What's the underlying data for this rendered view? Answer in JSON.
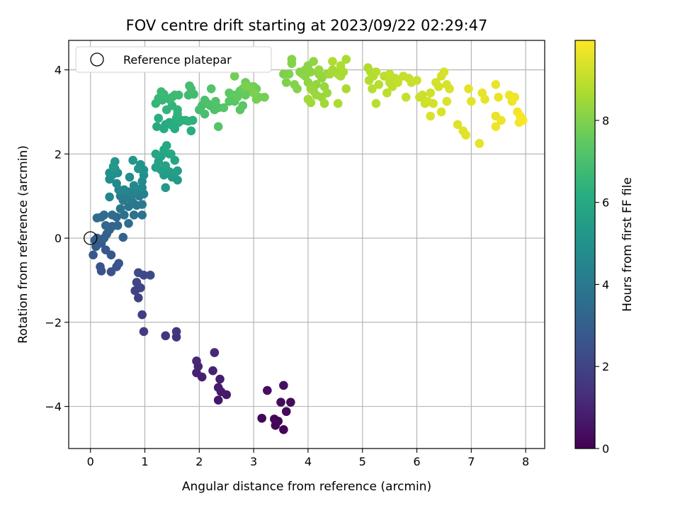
{
  "chart_data": {
    "type": "scatter",
    "title": "FOV centre drift starting at 2023/09/22 02:29:47",
    "xlabel": "Angular distance from reference (arcmin)",
    "ylabel": "Rotation from reference (arcmin)",
    "xlim": [
      -0.4,
      8.35
    ],
    "ylim": [
      -5.0,
      4.7
    ],
    "xticks": [
      "0",
      "1",
      "2",
      "3",
      "4",
      "5",
      "6",
      "7",
      "8"
    ],
    "yticks": [
      "−4",
      "−2",
      "0",
      "2",
      "4"
    ],
    "grid": true,
    "legend": {
      "placement": "top-left",
      "entries": [
        "Reference platepar"
      ]
    },
    "reference_point": {
      "x": 0,
      "y": 0
    },
    "colorbar": {
      "label": "Hours from first FF file",
      "range": [
        0,
        9.95
      ],
      "ticks": [
        "0",
        "2",
        "4",
        "6",
        "8"
      ],
      "colormap": "viridis"
    },
    "points": [
      [
        3.55,
        -4.55,
        0.05
      ],
      [
        3.45,
        -4.35,
        0.08
      ],
      [
        3.4,
        -4.45,
        0.11
      ],
      [
        3.15,
        -4.28,
        0.15
      ],
      [
        3.38,
        -4.3,
        0.19
      ],
      [
        3.6,
        -4.12,
        0.23
      ],
      [
        3.68,
        -3.9,
        0.27
      ],
      [
        3.5,
        -3.9,
        0.31
      ],
      [
        3.25,
        -3.62,
        0.36
      ],
      [
        3.55,
        -3.5,
        0.42
      ],
      [
        2.35,
        -3.85,
        0.62
      ],
      [
        2.5,
        -3.72,
        0.68
      ],
      [
        2.4,
        -3.65,
        0.72
      ],
      [
        2.35,
        -3.55,
        0.77
      ],
      [
        2.38,
        -3.35,
        0.82
      ],
      [
        2.05,
        -3.3,
        0.88
      ],
      [
        1.95,
        -3.2,
        0.93
      ],
      [
        2.25,
        -3.15,
        0.97
      ],
      [
        1.98,
        -3.05,
        1.02
      ],
      [
        1.95,
        -2.92,
        1.07
      ],
      [
        2.28,
        -2.72,
        1.12
      ],
      [
        1.58,
        -2.35,
        1.45
      ],
      [
        1.38,
        -2.32,
        1.52
      ],
      [
        1.58,
        -2.22,
        1.58
      ],
      [
        0.98,
        -2.22,
        1.78
      ],
      [
        0.95,
        -1.82,
        1.85
      ],
      [
        0.88,
        -1.42,
        1.92
      ],
      [
        0.82,
        -1.25,
        1.98
      ],
      [
        0.92,
        -1.18,
        2.03
      ],
      [
        0.85,
        -1.05,
        2.08
      ],
      [
        0.98,
        -0.88,
        2.12
      ],
      [
        1.1,
        -0.88,
        2.17
      ],
      [
        0.88,
        -0.82,
        2.22
      ],
      [
        0.38,
        -0.8,
        2.42
      ],
      [
        0.2,
        -0.78,
        2.47
      ],
      [
        0.18,
        -0.68,
        2.52
      ],
      [
        0.48,
        -0.68,
        2.56
      ],
      [
        0.52,
        -0.6,
        2.6
      ],
      [
        0.38,
        -0.4,
        2.65
      ],
      [
        0.05,
        -0.4,
        2.7
      ],
      [
        0.28,
        -0.28,
        2.75
      ],
      [
        0.1,
        -0.2,
        2.8
      ],
      [
        0.2,
        -0.12,
        2.85
      ],
      [
        0.08,
        -0.05,
        2.9
      ],
      [
        0.12,
        0.0,
        2.95
      ],
      [
        0.25,
        0.0,
        3.0
      ],
      [
        0.3,
        0.1,
        3.05
      ],
      [
        0.35,
        0.2,
        3.1
      ],
      [
        0.6,
        0.02,
        3.15
      ],
      [
        0.4,
        0.28,
        3.2
      ],
      [
        0.28,
        0.3,
        3.25
      ],
      [
        0.5,
        0.3,
        3.3
      ],
      [
        0.48,
        0.5,
        3.35
      ],
      [
        0.2,
        0.5,
        3.4
      ],
      [
        0.12,
        0.48,
        3.45
      ],
      [
        0.25,
        0.55,
        3.5
      ],
      [
        0.4,
        0.55,
        3.55
      ],
      [
        0.7,
        0.35,
        3.6
      ],
      [
        0.62,
        0.55,
        3.65
      ],
      [
        0.8,
        0.55,
        3.7
      ],
      [
        0.95,
        0.55,
        3.75
      ],
      [
        0.55,
        0.7,
        3.8
      ],
      [
        0.7,
        0.75,
        3.85
      ],
      [
        0.85,
        0.78,
        3.9
      ],
      [
        0.78,
        0.85,
        3.95
      ],
      [
        0.95,
        0.8,
        4.0
      ],
      [
        0.6,
        0.9,
        4.05
      ],
      [
        0.72,
        0.95,
        4.1
      ],
      [
        0.9,
        1.0,
        4.15
      ],
      [
        0.55,
        1.0,
        4.2
      ],
      [
        0.62,
        1.05,
        4.25
      ],
      [
        0.8,
        1.05,
        4.3
      ],
      [
        0.98,
        1.05,
        4.35
      ],
      [
        0.7,
        1.1,
        4.4
      ],
      [
        0.85,
        1.15,
        4.45
      ],
      [
        0.35,
        0.98,
        4.5
      ],
      [
        0.52,
        1.15,
        4.55
      ],
      [
        0.62,
        1.15,
        4.58
      ],
      [
        0.95,
        1.2,
        4.62
      ],
      [
        0.8,
        1.25,
        4.66
      ],
      [
        0.48,
        1.3,
        4.7
      ],
      [
        0.95,
        1.35,
        4.74
      ],
      [
        0.35,
        1.4,
        4.78
      ],
      [
        0.72,
        1.45,
        4.82
      ],
      [
        0.4,
        1.5,
        4.86
      ],
      [
        0.98,
        1.5,
        4.9
      ],
      [
        0.5,
        1.55,
        4.94
      ],
      [
        0.35,
        1.55,
        4.98
      ],
      [
        0.98,
        1.62,
        5.02
      ],
      [
        0.45,
        1.65,
        5.06
      ],
      [
        0.88,
        1.65,
        5.1
      ],
      [
        0.92,
        1.75,
        5.14
      ],
      [
        0.78,
        1.85,
        5.18
      ],
      [
        0.45,
        1.82,
        5.22
      ],
      [
        0.42,
        1.7,
        5.26
      ],
      [
        1.38,
        1.2,
        5.3
      ],
      [
        1.6,
        1.38,
        5.34
      ],
      [
        1.5,
        1.45,
        5.38
      ],
      [
        1.35,
        1.5,
        5.42
      ],
      [
        1.55,
        1.55,
        5.46
      ],
      [
        1.45,
        1.58,
        5.5
      ],
      [
        1.6,
        1.6,
        5.54
      ],
      [
        1.3,
        1.62,
        5.58
      ],
      [
        1.2,
        1.68,
        5.62
      ],
      [
        1.38,
        1.72,
        5.66
      ],
      [
        1.25,
        1.82,
        5.7
      ],
      [
        1.3,
        1.95,
        5.74
      ],
      [
        1.55,
        1.85,
        5.78
      ],
      [
        1.45,
        2.0,
        5.82
      ],
      [
        1.2,
        2.0,
        5.86
      ],
      [
        1.35,
        2.1,
        5.9
      ],
      [
        1.4,
        2.2,
        5.94
      ],
      [
        1.48,
        2.0,
        5.98
      ],
      [
        1.22,
        2.65,
        6.0
      ],
      [
        1.35,
        2.6,
        6.03
      ],
      [
        1.38,
        2.7,
        6.06
      ],
      [
        1.45,
        2.75,
        6.09
      ],
      [
        1.55,
        2.6,
        6.12
      ],
      [
        1.5,
        2.68,
        6.15
      ],
      [
        1.62,
        2.75,
        6.18
      ],
      [
        1.75,
        2.8,
        6.21
      ],
      [
        1.85,
        2.55,
        6.24
      ],
      [
        1.25,
        2.85,
        6.27
      ],
      [
        1.58,
        2.85,
        6.3
      ],
      [
        1.68,
        2.8,
        6.33
      ],
      [
        1.88,
        2.8,
        6.36
      ],
      [
        1.8,
        2.78,
        6.39
      ],
      [
        1.6,
        2.95,
        6.42
      ],
      [
        1.6,
        3.05,
        6.45
      ],
      [
        1.4,
        3.05,
        6.48
      ],
      [
        1.5,
        3.15,
        6.51
      ],
      [
        1.2,
        3.2,
        6.54
      ],
      [
        1.32,
        3.28,
        6.57
      ],
      [
        1.25,
        3.32,
        6.6
      ],
      [
        1.5,
        3.35,
        6.63
      ],
      [
        1.45,
        3.3,
        6.66
      ],
      [
        1.35,
        3.42,
        6.69
      ],
      [
        1.3,
        3.48,
        6.72
      ],
      [
        1.55,
        3.4,
        6.75
      ],
      [
        1.62,
        3.4,
        6.78
      ],
      [
        1.8,
        3.4,
        6.81
      ],
      [
        1.85,
        3.55,
        6.84
      ],
      [
        1.9,
        3.42,
        6.87
      ],
      [
        1.82,
        3.62,
        6.9
      ],
      [
        2.0,
        3.05,
        6.93
      ],
      [
        2.1,
        2.95,
        6.96
      ],
      [
        2.05,
        3.15,
        6.99
      ],
      [
        2.15,
        3.2,
        7.02
      ],
      [
        2.1,
        3.28,
        7.05
      ],
      [
        2.2,
        3.15,
        7.08
      ],
      [
        2.28,
        3.05,
        7.11
      ],
      [
        2.35,
        3.1,
        7.14
      ],
      [
        2.3,
        3.25,
        7.17
      ],
      [
        2.22,
        3.55,
        7.2
      ],
      [
        2.35,
        2.65,
        7.23
      ],
      [
        2.45,
        3.1,
        7.26
      ],
      [
        2.55,
        3.25,
        7.29
      ],
      [
        2.65,
        3.25,
        7.32
      ],
      [
        2.75,
        3.05,
        7.35
      ],
      [
        2.8,
        3.15,
        7.38
      ],
      [
        2.55,
        3.45,
        7.41
      ],
      [
        2.65,
        3.4,
        7.44
      ],
      [
        2.75,
        3.5,
        7.47
      ],
      [
        2.7,
        3.35,
        7.5
      ],
      [
        2.85,
        3.4,
        7.53
      ],
      [
        2.9,
        3.5,
        7.56
      ],
      [
        2.95,
        3.55,
        7.59
      ],
      [
        2.8,
        3.55,
        7.62
      ],
      [
        2.85,
        3.7,
        7.65
      ],
      [
        3.0,
        3.6,
        7.68
      ],
      [
        3.05,
        3.55,
        7.71
      ],
      [
        2.65,
        3.85,
        7.74
      ],
      [
        3.1,
        3.35,
        7.77
      ],
      [
        3.2,
        3.35,
        7.8
      ],
      [
        3.05,
        3.3,
        7.83
      ],
      [
        2.95,
        3.6,
        7.86
      ],
      [
        2.85,
        3.62,
        7.89
      ],
      [
        3.0,
        3.45,
        7.92
      ],
      [
        3.55,
        3.9,
        7.95
      ],
      [
        3.6,
        3.7,
        7.98
      ],
      [
        3.65,
        3.9,
        8.0
      ],
      [
        3.7,
        4.15,
        8.02
      ],
      [
        3.7,
        4.25,
        8.04
      ],
      [
        3.75,
        3.65,
        8.06
      ],
      [
        3.8,
        3.55,
        8.08
      ],
      [
        3.85,
        3.95,
        8.1
      ],
      [
        3.9,
        3.9,
        8.12
      ],
      [
        3.95,
        4.0,
        8.14
      ],
      [
        3.95,
        3.85,
        8.16
      ],
      [
        4.0,
        4.1,
        8.18
      ],
      [
        4.05,
        3.95,
        8.2
      ],
      [
        4.1,
        4.2,
        8.22
      ],
      [
        4.0,
        3.7,
        8.24
      ],
      [
        4.1,
        3.5,
        8.26
      ],
      [
        4.15,
        3.65,
        8.28
      ],
      [
        4.2,
        3.9,
        8.3
      ],
      [
        4.25,
        3.8,
        8.32
      ],
      [
        4.3,
        3.6,
        8.34
      ],
      [
        4.35,
        3.9,
        8.36
      ],
      [
        4.2,
        4.0,
        8.38
      ],
      [
        4.05,
        3.55,
        8.4
      ],
      [
        4.15,
        3.4,
        8.42
      ],
      [
        4.25,
        3.35,
        8.44
      ],
      [
        4.35,
        3.45,
        8.46
      ],
      [
        4.0,
        3.3,
        8.48
      ],
      [
        4.05,
        3.22,
        8.5
      ],
      [
        4.3,
        3.2,
        8.52
      ],
      [
        4.4,
        3.9,
        8.54
      ],
      [
        4.45,
        4.0,
        8.56
      ],
      [
        4.5,
        3.95,
        8.58
      ],
      [
        4.55,
        3.9,
        8.6
      ],
      [
        4.6,
        3.85,
        8.62
      ],
      [
        4.65,
        3.95,
        8.64
      ],
      [
        4.7,
        3.55,
        8.66
      ],
      [
        4.7,
        4.25,
        8.68
      ],
      [
        4.55,
        3.2,
        8.7
      ],
      [
        4.6,
        4.1,
        8.72
      ],
      [
        4.45,
        4.2,
        8.74
      ],
      [
        5.1,
        4.05,
        8.76
      ],
      [
        5.15,
        3.95,
        8.78
      ],
      [
        5.12,
        3.75,
        8.8
      ],
      [
        5.2,
        3.85,
        8.82
      ],
      [
        5.25,
        3.95,
        8.84
      ],
      [
        5.18,
        3.55,
        8.86
      ],
      [
        5.3,
        3.65,
        8.88
      ],
      [
        5.25,
        3.2,
        8.9
      ],
      [
        5.4,
        3.85,
        8.92
      ],
      [
        5.45,
        3.45,
        8.94
      ],
      [
        5.5,
        3.7,
        8.96
      ],
      [
        5.55,
        3.6,
        8.98
      ],
      [
        5.6,
        3.8,
        9.0
      ],
      [
        5.5,
        3.9,
        9.02
      ],
      [
        5.65,
        3.7,
        9.04
      ],
      [
        5.75,
        3.85,
        9.06
      ],
      [
        5.8,
        3.35,
        9.08
      ],
      [
        5.85,
        3.8,
        9.1
      ],
      [
        5.9,
        3.7,
        9.12
      ],
      [
        6.0,
        3.75,
        9.14
      ],
      [
        6.05,
        3.35,
        9.16
      ],
      [
        6.1,
        3.4,
        9.18
      ],
      [
        6.15,
        3.2,
        9.2
      ],
      [
        6.2,
        3.25,
        9.22
      ],
      [
        6.25,
        3.45,
        9.24
      ],
      [
        6.3,
        3.2,
        9.26
      ],
      [
        6.35,
        3.7,
        9.28
      ],
      [
        6.4,
        3.6,
        9.3
      ],
      [
        6.45,
        3.85,
        9.32
      ],
      [
        6.5,
        3.95,
        9.34
      ],
      [
        6.55,
        3.65,
        9.36
      ],
      [
        6.6,
        3.55,
        9.38
      ],
      [
        6.25,
        2.9,
        9.4
      ],
      [
        6.45,
        3.0,
        9.42
      ],
      [
        6.55,
        3.25,
        9.44
      ],
      [
        6.75,
        2.7,
        9.46
      ],
      [
        6.85,
        2.55,
        9.48
      ],
      [
        6.9,
        2.45,
        9.5
      ],
      [
        6.95,
        3.55,
        9.52
      ],
      [
        7.0,
        3.25,
        9.54
      ],
      [
        7.15,
        2.25,
        9.56
      ],
      [
        7.2,
        3.45,
        9.58
      ],
      [
        7.25,
        3.3,
        9.6
      ],
      [
        7.45,
        3.65,
        9.62
      ],
      [
        7.45,
        2.9,
        9.64
      ],
      [
        7.5,
        3.35,
        9.66
      ],
      [
        7.55,
        2.8,
        9.68
      ],
      [
        7.45,
        2.65,
        9.7
      ],
      [
        7.7,
        3.4,
        9.72
      ],
      [
        7.75,
        3.25,
        9.74
      ],
      [
        7.8,
        3.35,
        9.76
      ],
      [
        7.85,
        3.0,
        9.78
      ],
      [
        7.88,
        2.75,
        9.8
      ],
      [
        7.9,
        2.9,
        9.84
      ],
      [
        7.95,
        2.8,
        9.88
      ]
    ]
  }
}
